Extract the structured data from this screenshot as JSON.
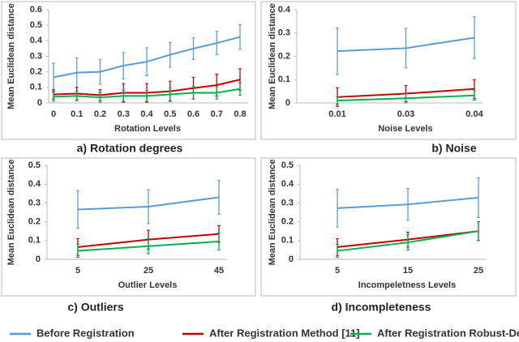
{
  "chart_data": [
    {
      "type": "line",
      "title": "a) Rotation degrees",
      "x_label": "Rotation Levels",
      "y_label": "Mean Euclidean distance",
      "categories": [
        "0",
        "0.1",
        "0.2",
        "0.3",
        "0.4",
        "0.5",
        "0.6",
        "0.7",
        "0.8"
      ],
      "ylim": [
        0,
        0.6
      ],
      "yticks": [
        0,
        0.1,
        0.2,
        0.3,
        0.4,
        0.5,
        0.6
      ],
      "series": [
        {
          "name": "Before Registration",
          "color": "#5b9bd5",
          "values": [
            0.165,
            0.195,
            0.2,
            0.24,
            0.265,
            0.31,
            0.35,
            0.385,
            0.425
          ],
          "errors": [
            0.09,
            0.095,
            0.08,
            0.085,
            0.09,
            0.08,
            0.07,
            0.075,
            0.08
          ]
        },
        {
          "name": "After Registration Method [11]",
          "color": "#c00000",
          "values": [
            0.055,
            0.06,
            0.05,
            0.065,
            0.065,
            0.075,
            0.095,
            0.115,
            0.15
          ],
          "errors": [
            0.03,
            0.04,
            0.035,
            0.06,
            0.06,
            0.065,
            0.07,
            0.07,
            0.07
          ]
        },
        {
          "name": "After Registration Robust-DefReg",
          "color": "#00b050",
          "values": [
            0.04,
            0.045,
            0.035,
            0.045,
            0.045,
            0.055,
            0.065,
            0.065,
            0.09
          ],
          "errors": [
            0.03,
            0.03,
            0.03,
            0.035,
            0.035,
            0.04,
            0.04,
            0.04,
            0.04
          ]
        }
      ]
    },
    {
      "type": "line",
      "title": "b) Noise",
      "x_label": "Noise Levels",
      "y_label": "Mean Euclidean distance",
      "categories": [
        "0.01",
        "0.03",
        "0.04"
      ],
      "ylim": [
        0,
        0.4
      ],
      "yticks": [
        0,
        0.1,
        0.2,
        0.3,
        0.4
      ],
      "series": [
        {
          "name": "Before Registration",
          "color": "#5b9bd5",
          "values": [
            0.222,
            0.235,
            0.28
          ],
          "errors": [
            0.1,
            0.085,
            0.09
          ]
        },
        {
          "name": "After Registration Method [11]",
          "color": "#c00000",
          "values": [
            0.025,
            0.04,
            0.06
          ],
          "errors": [
            0.04,
            0.035,
            0.04
          ]
        },
        {
          "name": "After Registration Robust-DefReg",
          "color": "#00b050",
          "values": [
            0.01,
            0.02,
            0.032
          ],
          "errors": [
            0.015,
            0.02,
            0.02
          ]
        }
      ]
    },
    {
      "type": "line",
      "title": "c) Outliers",
      "x_label": "Outlier Levels",
      "y_label": "Mean Euclidean distance",
      "categories": [
        "5",
        "25",
        "45"
      ],
      "ylim": [
        0,
        0.5
      ],
      "yticks": [
        0,
        0.1,
        0.2,
        0.3,
        0.4,
        0.5
      ],
      "series": [
        {
          "name": "Before Registration",
          "color": "#5b9bd5",
          "values": [
            0.265,
            0.28,
            0.33
          ],
          "errors": [
            0.1,
            0.09,
            0.09
          ]
        },
        {
          "name": "After Registration Method [11]",
          "color": "#c00000",
          "values": [
            0.065,
            0.105,
            0.135
          ],
          "errors": [
            0.045,
            0.05,
            0.045
          ]
        },
        {
          "name": "After Registration Robust-DefReg",
          "color": "#00b050",
          "values": [
            0.045,
            0.07,
            0.095
          ],
          "errors": [
            0.035,
            0.04,
            0.045
          ]
        }
      ]
    },
    {
      "type": "line",
      "title": "d) Incompleteness",
      "x_label": "Incompeletness Levels",
      "y_label": "Mean Euclidean distance",
      "categories": [
        "5",
        "15",
        "25"
      ],
      "ylim": [
        0,
        0.5
      ],
      "yticks": [
        0,
        0.1,
        0.2,
        0.3,
        0.4,
        0.5
      ],
      "series": [
        {
          "name": "Before Registration",
          "color": "#5b9bd5",
          "values": [
            0.272,
            0.292,
            0.328
          ],
          "errors": [
            0.1,
            0.085,
            0.105
          ]
        },
        {
          "name": "After Registration Method [11]",
          "color": "#c00000",
          "values": [
            0.065,
            0.105,
            0.15
          ],
          "errors": [
            0.045,
            0.04,
            0.05
          ]
        },
        {
          "name": "After Registration Robust-DefReg",
          "color": "#00b050",
          "values": [
            0.045,
            0.09,
            0.15
          ],
          "errors": [
            0.035,
            0.04,
            0.05
          ]
        }
      ]
    }
  ]
}
